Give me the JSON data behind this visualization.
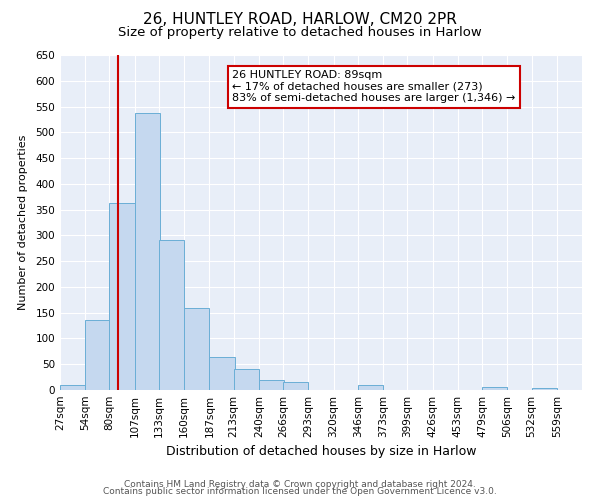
{
  "title": "26, HUNTLEY ROAD, HARLOW, CM20 2PR",
  "subtitle": "Size of property relative to detached houses in Harlow",
  "xlabel": "Distribution of detached houses by size in Harlow",
  "ylabel": "Number of detached properties",
  "bar_left_edges": [
    27,
    54,
    80,
    107,
    133,
    160,
    187,
    213,
    240,
    266,
    293,
    320,
    346,
    373,
    399,
    426,
    453,
    479,
    506,
    532
  ],
  "bar_heights": [
    10,
    135,
    362,
    537,
    292,
    160,
    65,
    40,
    20,
    15,
    0,
    0,
    10,
    0,
    0,
    0,
    0,
    5,
    0,
    3
  ],
  "bin_width": 27,
  "tick_labels": [
    "27sqm",
    "54sqm",
    "80sqm",
    "107sqm",
    "133sqm",
    "160sqm",
    "187sqm",
    "213sqm",
    "240sqm",
    "266sqm",
    "293sqm",
    "320sqm",
    "346sqm",
    "373sqm",
    "399sqm",
    "426sqm",
    "453sqm",
    "479sqm",
    "506sqm",
    "532sqm",
    "559sqm"
  ],
  "property_size": 89,
  "vline_x": 89,
  "bar_color": "#c5d8ef",
  "bar_edge_color": "#6aaed6",
  "vline_color": "#cc0000",
  "annotation_text": "26 HUNTLEY ROAD: 89sqm\n← 17% of detached houses are smaller (273)\n83% of semi-detached houses are larger (1,346) →",
  "annotation_box_color": "#ffffff",
  "annotation_box_edge": "#cc0000",
  "ylim": [
    0,
    650
  ],
  "yticks": [
    0,
    50,
    100,
    150,
    200,
    250,
    300,
    350,
    400,
    450,
    500,
    550,
    600,
    650
  ],
  "background_color": "#e8eef8",
  "footer_line1": "Contains HM Land Registry data © Crown copyright and database right 2024.",
  "footer_line2": "Contains public sector information licensed under the Open Government Licence v3.0.",
  "title_fontsize": 11,
  "subtitle_fontsize": 9.5,
  "xlabel_fontsize": 9,
  "ylabel_fontsize": 8,
  "tick_fontsize": 7.5,
  "annotation_fontsize": 8,
  "footer_fontsize": 6.5
}
